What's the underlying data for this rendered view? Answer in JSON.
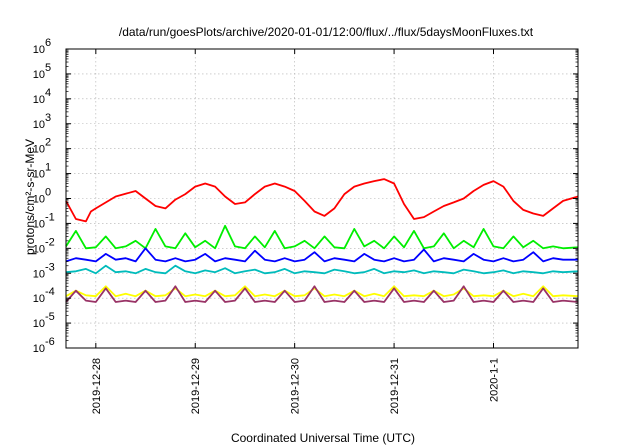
{
  "chart_data": {
    "type": "line",
    "title": "/data/run/goesPlots/archive/2020-01-01/12:00/flux/../flux/5daysMoonFluxes.txt",
    "xlabel": "Coordinated Universal Time (UTC)",
    "ylabel": "protons/cm²-s-sr-MeV",
    "yscale": "log",
    "ylim": [
      1e-06,
      1000000.0
    ],
    "xlim": [
      -0.3,
      4.85
    ],
    "x_units": "days since 2019-12-28 00:00 UTC",
    "grid": true,
    "legend": "none",
    "x_ticks": [
      {
        "x": 0,
        "label": "2019-12-28"
      },
      {
        "x": 1,
        "label": "2019-12-29"
      },
      {
        "x": 2,
        "label": "2019-12-30"
      },
      {
        "x": 3,
        "label": "2019-12-31"
      },
      {
        "x": 4,
        "label": "2020-1-1"
      }
    ],
    "y_ticks": [
      {
        "exp": -6,
        "label": "10",
        "sup": "-6"
      },
      {
        "exp": -5,
        "label": "10",
        "sup": "-5"
      },
      {
        "exp": -4,
        "label": "10",
        "sup": "-4"
      },
      {
        "exp": -3,
        "label": "10",
        "sup": "-3"
      },
      {
        "exp": -2,
        "label": "10",
        "sup": "-2"
      },
      {
        "exp": -1,
        "label": "10",
        "sup": "-1"
      },
      {
        "exp": 0,
        "label": "10",
        "sup": "0"
      },
      {
        "exp": 1,
        "label": "10",
        "sup": "1"
      },
      {
        "exp": 2,
        "label": "10",
        "sup": "2"
      },
      {
        "exp": 3,
        "label": "10",
        "sup": "3"
      },
      {
        "exp": 4,
        "label": "10",
        "sup": "4"
      },
      {
        "exp": 5,
        "label": "10",
        "sup": "5"
      },
      {
        "exp": 6,
        "label": "10",
        "sup": "6"
      }
    ],
    "series": [
      {
        "color": "#ff0000",
        "x": [
          -0.3,
          -0.2,
          -0.1,
          -0.05,
          0,
          0.2,
          0.4,
          0.5,
          0.6,
          0.7,
          0.8,
          0.9,
          1,
          1.1,
          1.2,
          1.3,
          1.4,
          1.5,
          1.6,
          1.7,
          1.8,
          1.9,
          2,
          2.1,
          2.2,
          2.3,
          2.4,
          2.5,
          2.6,
          2.7,
          2.8,
          2.9,
          3,
          3.1,
          3.2,
          3.3,
          3.4,
          3.5,
          3.6,
          3.7,
          3.8,
          3.9,
          4,
          4.1,
          4.2,
          4.3,
          4.4,
          4.5,
          4.6,
          4.7,
          4.85
        ],
        "y": [
          0.8,
          0.15,
          0.12,
          0.3,
          0.4,
          1.2,
          2.0,
          1.0,
          0.5,
          0.4,
          0.9,
          1.5,
          3.0,
          4.0,
          3.0,
          1.2,
          0.6,
          0.7,
          1.5,
          3.0,
          4.0,
          3.0,
          2.0,
          0.8,
          0.3,
          0.2,
          0.4,
          1.5,
          3.0,
          4.0,
          5.0,
          6.0,
          4.0,
          0.6,
          0.15,
          0.18,
          0.3,
          0.5,
          0.7,
          1.0,
          2.0,
          3.5,
          5.0,
          3.0,
          0.8,
          0.35,
          0.25,
          0.2,
          0.4,
          0.8,
          1.2
        ]
      },
      {
        "color": "#00ee00",
        "x": [
          -0.3,
          -0.2,
          -0.1,
          0,
          0.1,
          0.2,
          0.3,
          0.4,
          0.5,
          0.6,
          0.7,
          0.8,
          0.9,
          1,
          1.1,
          1.2,
          1.3,
          1.4,
          1.5,
          1.6,
          1.7,
          1.8,
          1.9,
          2,
          2.1,
          2.2,
          2.3,
          2.4,
          2.5,
          2.6,
          2.7,
          2.8,
          2.9,
          3,
          3.1,
          3.2,
          3.3,
          3.4,
          3.5,
          3.6,
          3.7,
          3.8,
          3.9,
          4,
          4.1,
          4.2,
          4.3,
          4.4,
          4.5,
          4.6,
          4.7,
          4.85
        ],
        "y": [
          0.012,
          0.05,
          0.01,
          0.011,
          0.03,
          0.01,
          0.012,
          0.02,
          0.01,
          0.06,
          0.012,
          0.01,
          0.04,
          0.011,
          0.02,
          0.01,
          0.08,
          0.012,
          0.01,
          0.03,
          0.011,
          0.05,
          0.01,
          0.012,
          0.02,
          0.01,
          0.03,
          0.011,
          0.01,
          0.06,
          0.012,
          0.02,
          0.01,
          0.03,
          0.011,
          0.05,
          0.01,
          0.012,
          0.04,
          0.01,
          0.02,
          0.011,
          0.06,
          0.012,
          0.01,
          0.03,
          0.011,
          0.02,
          0.01,
          0.012,
          0.01,
          0.011
        ]
      },
      {
        "color": "#00bbbb",
        "x": [
          -0.3,
          -0.2,
          -0.1,
          0,
          0.1,
          0.2,
          0.3,
          0.4,
          0.5,
          0.6,
          0.7,
          0.8,
          0.9,
          1,
          1.1,
          1.2,
          1.3,
          1.4,
          1.5,
          1.6,
          1.7,
          1.8,
          1.9,
          2,
          2.1,
          2.2,
          2.3,
          2.4,
          2.5,
          2.6,
          2.7,
          2.8,
          2.9,
          3,
          3.1,
          3.2,
          3.3,
          3.4,
          3.5,
          3.6,
          3.7,
          3.8,
          3.9,
          4,
          4.1,
          4.2,
          4.3,
          4.4,
          4.5,
          4.6,
          4.7,
          4.85
        ],
        "y": [
          0.0011,
          0.0012,
          0.0015,
          0.001,
          0.002,
          0.0011,
          0.0012,
          0.001,
          0.0015,
          0.0011,
          0.001,
          0.002,
          0.0012,
          0.001,
          0.0013,
          0.0011,
          0.0016,
          0.001,
          0.0012,
          0.0014,
          0.001,
          0.0011,
          0.0015,
          0.001,
          0.0012,
          0.0011,
          0.001,
          0.0014,
          0.0012,
          0.001,
          0.0011,
          0.0015,
          0.001,
          0.0012,
          0.0011,
          0.0013,
          0.001,
          0.0012,
          0.0011,
          0.001,
          0.0014,
          0.0012,
          0.001,
          0.0011,
          0.0013,
          0.001,
          0.0012,
          0.0011,
          0.001,
          0.0012,
          0.0011,
          0.0012
        ]
      },
      {
        "color": "#0000ff",
        "x": [
          -0.3,
          -0.2,
          -0.1,
          0,
          0.1,
          0.2,
          0.3,
          0.4,
          0.5,
          0.6,
          0.7,
          0.8,
          0.9,
          1,
          1.1,
          1.2,
          1.3,
          1.4,
          1.5,
          1.6,
          1.7,
          1.8,
          1.9,
          2,
          2.1,
          2.2,
          2.3,
          2.4,
          2.5,
          2.6,
          2.7,
          2.8,
          2.9,
          3,
          3.1,
          3.2,
          3.3,
          3.4,
          3.5,
          3.6,
          3.7,
          3.8,
          3.9,
          4,
          4.1,
          4.2,
          4.3,
          4.4,
          4.5,
          4.6,
          4.7,
          4.85
        ],
        "y": [
          0.003,
          0.004,
          0.0035,
          0.003,
          0.006,
          0.0035,
          0.004,
          0.003,
          0.01,
          0.0035,
          0.003,
          0.004,
          0.003,
          0.0035,
          0.006,
          0.003,
          0.004,
          0.0035,
          0.003,
          0.008,
          0.0035,
          0.003,
          0.004,
          0.003,
          0.0035,
          0.007,
          0.003,
          0.004,
          0.0035,
          0.003,
          0.006,
          0.0035,
          0.003,
          0.004,
          0.003,
          0.0035,
          0.009,
          0.003,
          0.004,
          0.0035,
          0.003,
          0.006,
          0.0035,
          0.003,
          0.004,
          0.003,
          0.0035,
          0.007,
          0.003,
          0.004,
          0.0035,
          0.0035
        ]
      },
      {
        "color": "#ffff00",
        "x": [
          -0.3,
          -0.2,
          -0.1,
          0,
          0.1,
          0.2,
          0.3,
          0.4,
          0.5,
          0.6,
          0.7,
          0.8,
          0.9,
          1,
          1.1,
          1.2,
          1.3,
          1.4,
          1.5,
          1.6,
          1.7,
          1.8,
          1.9,
          2,
          2.1,
          2.2,
          2.3,
          2.4,
          2.5,
          2.6,
          2.7,
          2.8,
          2.9,
          3,
          3.1,
          3.2,
          3.3,
          3.4,
          3.5,
          3.6,
          3.7,
          3.8,
          3.9,
          4,
          4.1,
          4.2,
          4.3,
          4.4,
          4.5,
          4.6,
          4.7,
          4.85
        ],
        "y": [
          0.00012,
          0.0002,
          0.00013,
          0.00012,
          0.0003,
          0.00012,
          0.00015,
          0.00012,
          0.0002,
          0.00012,
          0.00013,
          0.00025,
          0.00012,
          0.00014,
          0.00012,
          0.0002,
          0.00012,
          0.00013,
          0.0003,
          0.00012,
          0.00014,
          0.00012,
          0.0002,
          0.00012,
          0.00013,
          0.00025,
          0.00012,
          0.00014,
          0.00012,
          0.0002,
          0.00012,
          0.00015,
          0.00012,
          0.0003,
          0.00012,
          0.00013,
          0.00012,
          0.0002,
          0.00012,
          0.00014,
          0.00025,
          0.00012,
          0.00013,
          0.00012,
          0.0002,
          0.00012,
          0.00015,
          0.00012,
          0.0003,
          0.00012,
          0.00013,
          0.00012
        ]
      },
      {
        "color": "#993366",
        "x": [
          -0.3,
          -0.2,
          -0.1,
          0,
          0.1,
          0.2,
          0.3,
          0.4,
          0.5,
          0.6,
          0.7,
          0.8,
          0.9,
          1,
          1.1,
          1.2,
          1.3,
          1.4,
          1.5,
          1.6,
          1.7,
          1.8,
          1.9,
          2,
          2.1,
          2.2,
          2.3,
          2.4,
          2.5,
          2.6,
          2.7,
          2.8,
          2.9,
          3,
          3.1,
          3.2,
          3.3,
          3.4,
          3.5,
          3.6,
          3.7,
          3.8,
          3.9,
          4,
          4.1,
          4.2,
          4.3,
          4.4,
          4.5,
          4.6,
          4.7,
          4.85
        ],
        "y": [
          7e-05,
          0.0002,
          8e-05,
          7e-05,
          0.00025,
          7e-05,
          8e-05,
          7e-05,
          0.0002,
          7e-05,
          8e-05,
          0.0003,
          7e-05,
          8e-05,
          7e-05,
          0.0002,
          7e-05,
          8e-05,
          0.00025,
          7e-05,
          8e-05,
          7e-05,
          0.0002,
          7e-05,
          8e-05,
          0.0003,
          7e-05,
          8e-05,
          7e-05,
          0.0002,
          7e-05,
          8e-05,
          7e-05,
          0.00025,
          7e-05,
          8e-05,
          7e-05,
          0.0002,
          7e-05,
          8e-05,
          0.0003,
          7e-05,
          8e-05,
          7e-05,
          0.0002,
          7e-05,
          8e-05,
          7e-05,
          0.00025,
          7e-05,
          8e-05,
          7e-05
        ]
      }
    ]
  }
}
